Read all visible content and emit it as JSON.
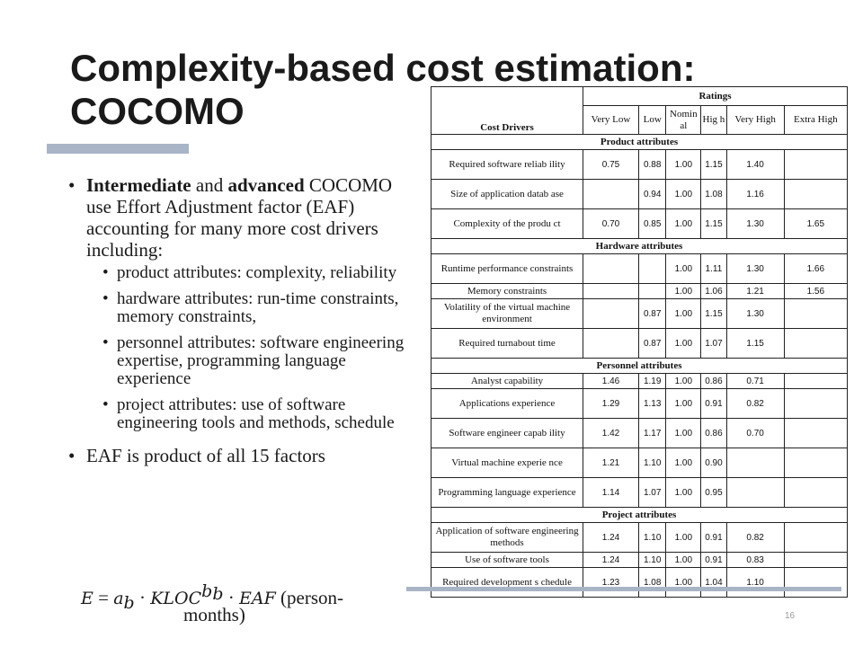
{
  "slide": {
    "title_line1": "Complexity-based cost estimation:",
    "title_line2": "COCOMO",
    "page_number": "16"
  },
  "bullets": {
    "b1_bold1": "Intermediate",
    "b1_t1": " and ",
    "b1_bold2": "advanced",
    "b1_t2": " COCOMO use Effort Adjustment  factor (EAF) accounting for many more cost drivers including:",
    "subs": [
      "product attributes: complexity, reliability",
      "hardware attributes: run-time constraints, memory constraints,",
      "personnel attributes: software engineering expertise, programming language experience",
      "project attributes: use of software engineering tools and methods, schedule"
    ],
    "b2": "EAF is product  of all 15 factors"
  },
  "formula": {
    "lhs": "E",
    "eq": " = ",
    "a": "a",
    "a_sub": "b",
    "dot1": " · ",
    "kloc": "KLOC",
    "b": "b",
    "b_sub": "b",
    "dot2": " · ",
    "eaf": "EAF",
    "unit1": " (person-",
    "unit2": "months)"
  },
  "table": {
    "header_cost_drivers": "Cost Drivers",
    "header_ratings": "Ratings",
    "rating_headers": [
      "Very Low",
      "Low",
      "Nomin al",
      "Hig h",
      "Very High",
      "Extra High"
    ],
    "sections": [
      {
        "title": "Product attributes",
        "rows": [
          {
            "name": "Required software reliab ility",
            "vals": [
              "0.75",
              "0.88",
              "1.00",
              "1.15",
              "1.40",
              ""
            ]
          },
          {
            "name": "Size of application datab ase",
            "vals": [
              "",
              "0.94",
              "1.00",
              "1.08",
              "1.16",
              ""
            ]
          },
          {
            "name": "Complexity of the produ ct",
            "vals": [
              "0.70",
              "0.85",
              "1.00",
              "1.15",
              "1.30",
              "1.65"
            ]
          }
        ]
      },
      {
        "title": "Hardware attributes",
        "rows": [
          {
            "name": "Runtime performance constraints",
            "vals": [
              "",
              "",
              "1.00",
              "1.11",
              "1.30",
              "1.66"
            ]
          },
          {
            "name": "Memory constraints",
            "vals": [
              "",
              "",
              "1.00",
              "1.06",
              "1.21",
              "1.56"
            ]
          },
          {
            "name": "Volatility of the virtual machine environment",
            "vals": [
              "",
              "0.87",
              "1.00",
              "1.15",
              "1.30",
              ""
            ]
          },
          {
            "name": "Required turnabout time",
            "vals": [
              "",
              "0.87",
              "1.00",
              "1.07",
              "1.15",
              ""
            ]
          }
        ]
      },
      {
        "title": "Personnel attributes",
        "rows": [
          {
            "name": "Analyst capability",
            "vals": [
              "1.46",
              "1.19",
              "1.00",
              "0.86",
              "0.71",
              ""
            ]
          },
          {
            "name": "Applications experience",
            "vals": [
              "1.29",
              "1.13",
              "1.00",
              "0.91",
              "0.82",
              ""
            ]
          },
          {
            "name": "Software engineer capab ility",
            "vals": [
              "1.42",
              "1.17",
              "1.00",
              "0.86",
              "0.70",
              ""
            ]
          },
          {
            "name": "Virtual machine experie nce",
            "vals": [
              "1.21",
              "1.10",
              "1.00",
              "0.90",
              "",
              ""
            ]
          },
          {
            "name": "Programming language experience",
            "vals": [
              "1.14",
              "1.07",
              "1.00",
              "0.95",
              "",
              ""
            ]
          }
        ]
      },
      {
        "title": "Project attributes",
        "rows": [
          {
            "name": "Application of software engineering methods",
            "vals": [
              "1.24",
              "1.10",
              "1.00",
              "0.91",
              "0.82",
              ""
            ]
          },
          {
            "name": "Use of software tools",
            "vals": [
              "1.24",
              "1.10",
              "1.00",
              "0.91",
              "0.83",
              ""
            ]
          },
          {
            "name": "Required development s chedule",
            "vals": [
              "1.23",
              "1.08",
              "1.00",
              "1.04",
              "1.10",
              ""
            ]
          }
        ]
      }
    ]
  }
}
